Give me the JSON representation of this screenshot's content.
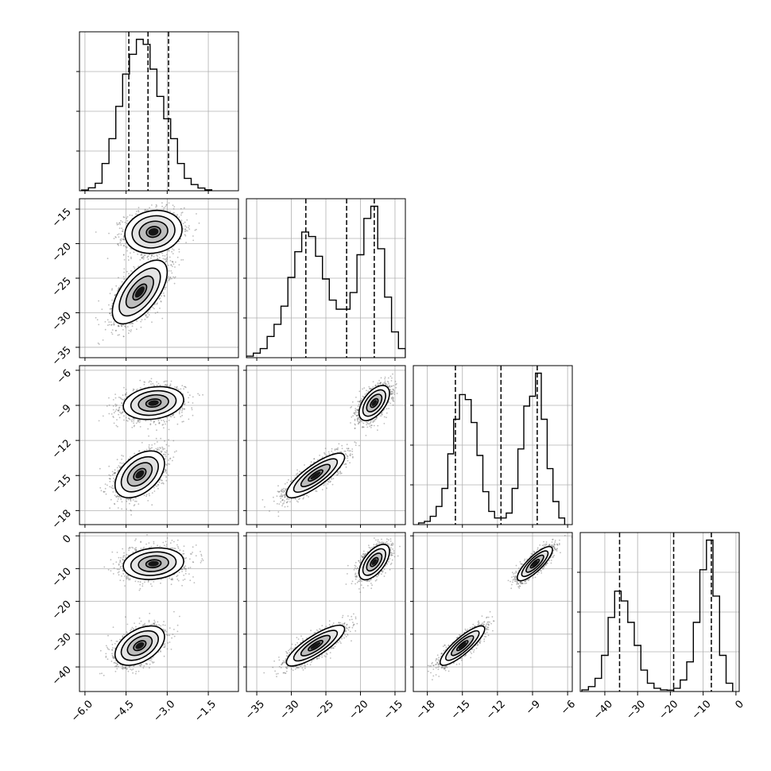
{
  "chart_data": {
    "type": "corner",
    "title": "",
    "grid": true,
    "n_params": 4,
    "params": [
      {
        "label": "",
        "range": [
          -6.2,
          -0.4
        ],
        "ticks": [
          -6.0,
          -4.5,
          -3.0,
          -1.5
        ],
        "tick_labels": [
          "−6.0",
          "−4.5",
          "−3.0",
          "−1.5"
        ]
      },
      {
        "label": "",
        "range": [
          -36.5,
          -13.5
        ],
        "ticks": [
          -35,
          -30,
          -25,
          -20,
          -15
        ],
        "tick_labels": [
          "−35",
          "−30",
          "−25",
          "−20",
          "−15"
        ]
      },
      {
        "label": "",
        "range": [
          -19.2,
          -5.6
        ],
        "ticks": [
          -18,
          -15,
          -12,
          -9,
          -6
        ],
        "tick_labels": [
          "−18",
          "−15",
          "−12",
          "−9",
          "−6"
        ]
      },
      {
        "label": "",
        "range": [
          -47.5,
          1.0
        ],
        "ticks": [
          -40,
          -30,
          -20,
          -10,
          0
        ],
        "tick_labels": [
          "−40",
          "−30",
          "−20",
          "−10",
          "0"
        ]
      }
    ],
    "histograms": [
      {
        "param": 0,
        "bins": [
          -6.0,
          -5.75,
          -5.5,
          -5.25,
          -5.0,
          -4.75,
          -4.5,
          -4.25,
          -4.0,
          -3.75,
          -3.5,
          -3.25,
          -3.0,
          -2.75,
          -2.5,
          -2.25,
          -2.0,
          -1.75,
          -1.5
        ],
        "counts": [
          0.3,
          1.2,
          3.0,
          11,
          21,
          34,
          47,
          55,
          61,
          59,
          49,
          38,
          29,
          21,
          11,
          5,
          2.5,
          1.1,
          0.4
        ],
        "quantiles": [
          -4.4,
          -3.7,
          -2.95
        ]
      },
      {
        "param": 1,
        "bins": [
          -36,
          -35,
          -34,
          -33,
          -32,
          -31,
          -30,
          -29,
          -28,
          -27,
          -26,
          -25,
          -24,
          -23,
          -22,
          -21,
          -20,
          -19,
          -18,
          -17,
          -16,
          -15,
          -14
        ],
        "counts": [
          1.0,
          3,
          6,
          14,
          22,
          34,
          53,
          70,
          83,
          80,
          67,
          52,
          38,
          32,
          32,
          43,
          68,
          92,
          100,
          72,
          40,
          17,
          6
        ],
        "quantiles": [
          -27.9,
          -22.0,
          -18.0
        ]
      },
      {
        "param": 2,
        "bins": [
          -18.5,
          -18.0,
          -17.5,
          -17.0,
          -16.5,
          -16.0,
          -15.5,
          -15.0,
          -14.5,
          -14.0,
          -13.5,
          -13.0,
          -12.5,
          -12.0,
          -11.5,
          -11.0,
          -10.5,
          -10.0,
          -9.5,
          -9.0,
          -8.5,
          -8.0,
          -7.5,
          -7.0,
          -6.5
        ],
        "counts": [
          1,
          2,
          5,
          11,
          22,
          43,
          64,
          79,
          76,
          62,
          42,
          20,
          8,
          4,
          4,
          7,
          22,
          46,
          72,
          78,
          92,
          64,
          34,
          14,
          4
        ],
        "quantiles": [
          -15.6,
          -11.7,
          -8.6
        ]
      },
      {
        "param": 3,
        "bins": [
          -46,
          -44,
          -42,
          -40,
          -38,
          -36,
          -34,
          -32,
          -30,
          -28,
          -26,
          -24,
          -22,
          -20,
          -18,
          -16,
          -14,
          -12,
          -10,
          -8,
          -6,
          -4,
          -2
        ],
        "counts": [
          1,
          3,
          8,
          22,
          45,
          61,
          55,
          42,
          28,
          13,
          5,
          2,
          1,
          0.8,
          2,
          7,
          18,
          42,
          74,
          92,
          58,
          22,
          5
        ],
        "quantiles": [
          -35.5,
          -19.0,
          -7.5
        ]
      }
    ],
    "pairs": [
      {
        "x": 0,
        "y": 1,
        "modes": [
          {
            "cx": -3.5,
            "cy": -18.3,
            "sx": 0.52,
            "sy": 1.55,
            "rho": 0.12,
            "n": 1500
          },
          {
            "cx": -4.0,
            "cy": -27.0,
            "sx": 0.5,
            "sy": 2.3,
            "rho": 0.62,
            "n": 1500
          }
        ]
      },
      {
        "x": 0,
        "y": 2,
        "modes": [
          {
            "cx": -3.5,
            "cy": -8.8,
            "sx": 0.55,
            "sy": 0.7,
            "rho": 0.2,
            "n": 1500
          },
          {
            "cx": -4.0,
            "cy": -14.9,
            "sx": 0.45,
            "sy": 1.0,
            "rho": 0.45,
            "n": 1500
          }
        ]
      },
      {
        "x": 0,
        "y": 3,
        "modes": [
          {
            "cx": -3.5,
            "cy": -8.5,
            "sx": 0.55,
            "sy": 2.4,
            "rho": 0.15,
            "n": 1500
          },
          {
            "cx": -4.0,
            "cy": -33.5,
            "sx": 0.45,
            "sy": 3.0,
            "rho": 0.45,
            "n": 1500
          }
        ]
      },
      {
        "x": 1,
        "y": 2,
        "modes": [
          {
            "cx": -18.0,
            "cy": -8.8,
            "sx": 1.1,
            "sy": 0.75,
            "rho": 0.55,
            "n": 1500
          },
          {
            "cx": -26.5,
            "cy": -15.0,
            "sx": 2.1,
            "sy": 0.95,
            "rho": 0.82,
            "n": 1500
          }
        ]
      },
      {
        "x": 1,
        "y": 3,
        "modes": [
          {
            "cx": -18.0,
            "cy": -8.0,
            "sx": 1.1,
            "sy": 2.7,
            "rho": 0.6,
            "n": 1500
          },
          {
            "cx": -26.5,
            "cy": -33.5,
            "sx": 2.1,
            "sy": 3.1,
            "rho": 0.82,
            "n": 1500
          }
        ]
      },
      {
        "x": 2,
        "y": 3,
        "modes": [
          {
            "cx": -8.8,
            "cy": -8.5,
            "sx": 0.75,
            "sy": 2.6,
            "rho": 0.82,
            "n": 1500
          },
          {
            "cx": -15.0,
            "cy": -33.5,
            "sx": 0.95,
            "sy": 3.0,
            "rho": 0.85,
            "n": 1500
          }
        ]
      }
    ]
  }
}
